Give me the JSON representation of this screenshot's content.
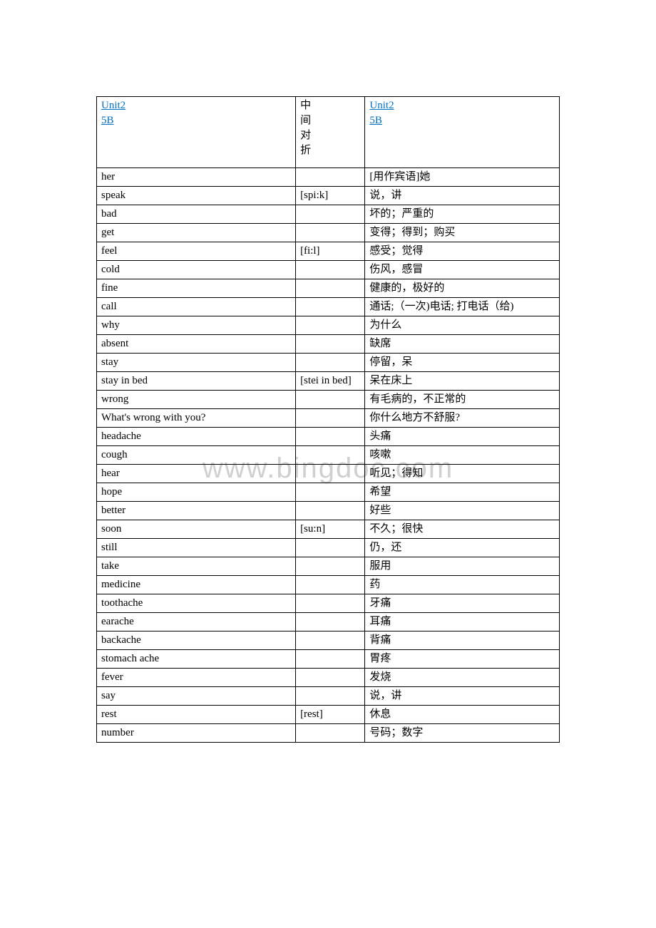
{
  "header": {
    "link1_line1": "Unit2",
    "link1_line2": "5B",
    "middle_text": "中间对折",
    "link2_line1": "Unit2",
    "link2_line2": "5B"
  },
  "colors": {
    "link": "#0070c0",
    "border": "#000000",
    "text": "#000000",
    "watermark": "#d0d0d0",
    "background": "#ffffff"
  },
  "watermark": "www.bingdoc.com",
  "rows": [
    {
      "en": "her",
      "ph": "",
      "zh": "[用作宾语]她"
    },
    {
      "en": "speak",
      "ph": "[spi:k]",
      "zh": "说，讲"
    },
    {
      "en": "bad",
      "ph": "",
      "zh": "坏的；严重的"
    },
    {
      "en": "get",
      "ph": "",
      "zh": "变得；得到；购买"
    },
    {
      "en": "feel",
      "ph": "[fi:l]",
      "zh": "感受；觉得"
    },
    {
      "en": "cold",
      "ph": "",
      "zh": "伤风，感冒"
    },
    {
      "en": "fine",
      "ph": "",
      "zh": "健康的，极好的"
    },
    {
      "en": "call",
      "ph": "",
      "zh": "通话;（一次)电话; 打电话（给)"
    },
    {
      "en": "why",
      "ph": "",
      "zh": "为什么"
    },
    {
      "en": "absent",
      "ph": "",
      "zh": "缺席"
    },
    {
      "en": "stay",
      "ph": "",
      "zh": "停留，呆"
    },
    {
      "en": "stay in bed",
      "ph": "[stei in bed]",
      "zh": "呆在床上"
    },
    {
      "en": "wrong",
      "ph": "",
      "zh": "有毛病的，不正常的"
    },
    {
      "en": "What's wrong with you?",
      "ph": "",
      "zh": "你什么地方不舒服?"
    },
    {
      "en": "headache",
      "ph": "",
      "zh": "头痛"
    },
    {
      "en": "cough",
      "ph": "",
      "zh": "咳嗽"
    },
    {
      "en": "hear",
      "ph": "",
      "zh": "听见；得知"
    },
    {
      "en": "hope",
      "ph": "",
      "zh": "希望"
    },
    {
      "en": "better",
      "ph": "",
      "zh": "好些"
    },
    {
      "en": "soon",
      "ph": "[su:n]",
      "zh": "不久；很快"
    },
    {
      "en": "still",
      "ph": "",
      "zh": "仍，还"
    },
    {
      "en": "take",
      "ph": "",
      "zh": "服用"
    },
    {
      "en": "medicine",
      "ph": "",
      "zh": "药"
    },
    {
      "en": "toothache",
      "ph": "",
      "zh": "牙痛"
    },
    {
      "en": "earache",
      "ph": "",
      "zh": "耳痛"
    },
    {
      "en": "backache",
      "ph": "",
      "zh": "背痛"
    },
    {
      "en": "stomach ache",
      "ph": "",
      "zh": "胃疼"
    },
    {
      "en": "fever",
      "ph": "",
      "zh": "发烧"
    },
    {
      "en": "say",
      "ph": "",
      "zh": "说，讲"
    },
    {
      "en": "rest",
      "ph": "[rest]",
      "zh": "休息"
    },
    {
      "en": "number",
      "ph": "",
      "zh": "号码；数字"
    }
  ]
}
